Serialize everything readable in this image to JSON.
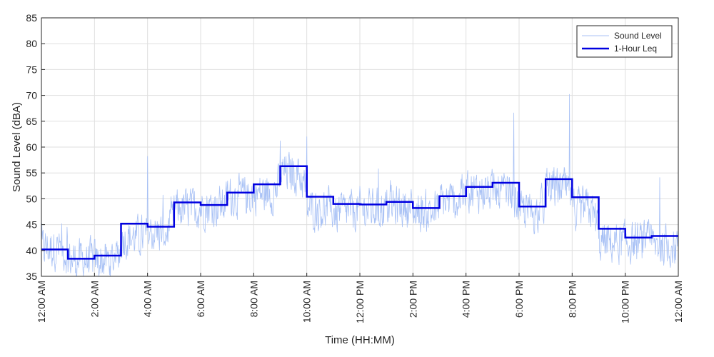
{
  "chart_data": {
    "type": "line",
    "xlabel": "Time (HH:MM)",
    "ylabel": "Sound Level (dBA)",
    "ylim": [
      35,
      85
    ],
    "xlim": [
      "12:00 AM",
      "12:00 AM"
    ],
    "x_unit": "hour of day",
    "xtick_hours": [
      0,
      2,
      4,
      6,
      8,
      10,
      12,
      14,
      16,
      18,
      20,
      22,
      24
    ],
    "xtick_labels": [
      "12:00 AM",
      "2:00 AM",
      "4:00 AM",
      "6:00 AM",
      "8:00 AM",
      "10:00 AM",
      "12:00 PM",
      "2:00 PM",
      "4:00 PM",
      "6:00 PM",
      "8:00 PM",
      "10:00 PM",
      "12:00 AM"
    ],
    "ytick_labels": [
      "35",
      "40",
      "45",
      "50",
      "55",
      "60",
      "65",
      "70",
      "75",
      "80",
      "85"
    ],
    "grid": true,
    "legend_position": "top-right",
    "series": [
      {
        "name": "Sound Level",
        "color": "#a8c1f5",
        "style": "thin line",
        "hourly_mean": [
          40.5,
          38.2,
          38.0,
          42.5,
          43.5,
          48.0,
          48.5,
          50.5,
          51.0,
          55.0,
          48.0,
          47.5,
          48.0,
          48.5,
          47.5,
          49.5,
          51.5,
          51.0,
          47.5,
          52.0,
          48.0,
          41.5,
          41.5,
          41.0
        ],
        "peaks": [
          [
            4.0,
            58.2
          ],
          [
            9.0,
            61.2
          ],
          [
            10.0,
            62.0
          ],
          [
            12.7,
            55.8
          ],
          [
            17.8,
            66.6
          ],
          [
            19.9,
            70.2
          ],
          [
            23.3,
            54.1
          ]
        ]
      },
      {
        "name": "1-Hour Leq",
        "color": "#0000e0",
        "style": "thick step line",
        "hours": [
          0,
          1,
          2,
          3,
          4,
          5,
          6,
          7,
          8,
          9,
          10,
          11,
          12,
          13,
          14,
          15,
          16,
          17,
          18,
          19,
          20,
          21,
          22,
          23
        ],
        "values": [
          40.2,
          38.4,
          39.0,
          45.2,
          44.6,
          49.3,
          48.8,
          51.2,
          52.8,
          56.3,
          50.4,
          49.0,
          48.9,
          49.4,
          48.2,
          50.5,
          52.3,
          53.1,
          48.5,
          53.8,
          50.3,
          44.2,
          42.5,
          42.8
        ]
      }
    ]
  }
}
